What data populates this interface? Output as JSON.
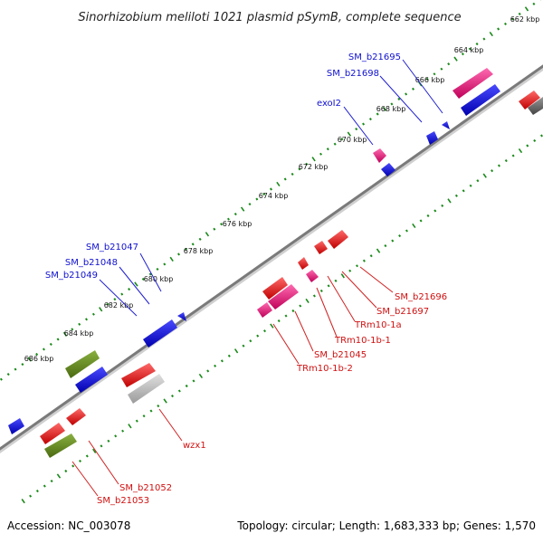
{
  "title": "Sinorhizobium meliloti 1021 plasmid pSymB, complete sequence",
  "accession": "Accession: NC_003078",
  "topology": "Topology: circular; Length: 1,683,333 bp; Genes: 1,570",
  "scale_labels": [
    "662 kbp",
    "664 kbp",
    "666 kbp",
    "668 kbp",
    "670 kbp",
    "672 kbp",
    "674 kbp",
    "676 kbp",
    "678 kbp",
    "680 kbp",
    "682 kbp",
    "684 kbp",
    "686 kbp"
  ],
  "gene_labels": [
    {
      "text": "SM_b21695",
      "color": "blue"
    },
    {
      "text": "SM_b21698",
      "color": "blue"
    },
    {
      "text": "exoI2",
      "color": "blue"
    },
    {
      "text": "SM_b21047",
      "color": "blue"
    },
    {
      "text": "SM_b21048",
      "color": "blue"
    },
    {
      "text": "SM_b21049",
      "color": "blue"
    },
    {
      "text": "SM_b21696",
      "color": "red"
    },
    {
      "text": "SM_b21697",
      "color": "red"
    },
    {
      "text": "TRm10-1a",
      "color": "red"
    },
    {
      "text": "TRm10-1b-1",
      "color": "red"
    },
    {
      "text": "SM_b21045",
      "color": "red"
    },
    {
      "text": "TRm10-1b-2",
      "color": "red"
    },
    {
      "text": "wzx1",
      "color": "red"
    },
    {
      "text": "SM_b21052",
      "color": "red"
    },
    {
      "text": "SM_b21053",
      "color": "red"
    }
  ],
  "colors": {
    "backbone": "#7a7a7a",
    "tick_green": "#1a8a1a",
    "gene_red": "#e01010",
    "gene_blue": "#1010e0",
    "gene_pink": "#e0107a",
    "gene_olive": "#5a7a1a",
    "gene_gray": "#b0b0b0",
    "gene_darkgray": "#666666",
    "label_blue": "#1010d0",
    "label_red": "#d01010"
  }
}
